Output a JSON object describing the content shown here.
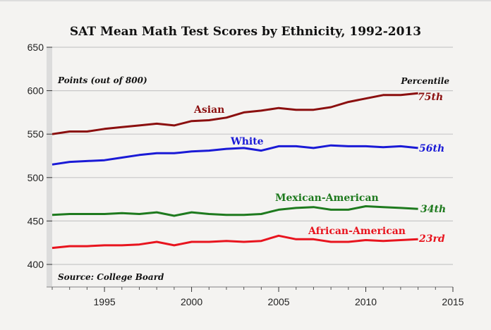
{
  "chart_data": {
    "type": "line",
    "title": "SAT Mean Math Test Scores by Ethnicity, 1992-2013",
    "ylabel": "Points (out of 800)",
    "source": "Source: College Board",
    "percentile_header": "Percentile",
    "xlim": [
      1992,
      2015
    ],
    "ylim": [
      400,
      650
    ],
    "xticks": [
      1995,
      2000,
      2005,
      2010,
      2015
    ],
    "yticks": [
      400,
      450,
      500,
      550,
      600,
      650
    ],
    "grid": true,
    "x": [
      1992,
      1993,
      1994,
      1995,
      1996,
      1997,
      1998,
      1999,
      2000,
      2001,
      2002,
      2003,
      2004,
      2005,
      2006,
      2007,
      2008,
      2009,
      2010,
      2011,
      2012,
      2013
    ],
    "series": [
      {
        "name": "Asian",
        "percentile": "75th",
        "color": "#8b0f0f",
        "values": [
          550,
          553,
          553,
          556,
          558,
          560,
          562,
          560,
          565,
          566,
          569,
          575,
          577,
          580,
          578,
          578,
          581,
          587,
          591,
          595,
          595,
          597
        ]
      },
      {
        "name": "White",
        "percentile": "56th",
        "color": "#1a1ad6",
        "values": [
          515,
          518,
          519,
          520,
          523,
          526,
          528,
          528,
          530,
          531,
          533,
          534,
          531,
          536,
          536,
          534,
          537,
          536,
          536,
          535,
          536,
          534
        ]
      },
      {
        "name": "Mexican-American",
        "percentile": "34th",
        "color": "#1e7a1e",
        "values": [
          457,
          458,
          458,
          458,
          459,
          458,
          460,
          456,
          460,
          458,
          457,
          457,
          458,
          463,
          465,
          466,
          463,
          463,
          467,
          466,
          465,
          464
        ]
      },
      {
        "name": "African-American",
        "percentile": "23rd",
        "color": "#e8141e",
        "values": [
          419,
          421,
          421,
          422,
          422,
          423,
          426,
          422,
          426,
          426,
          427,
          426,
          427,
          433,
          429,
          429,
          426,
          426,
          428,
          427,
          428,
          429
        ]
      }
    ]
  }
}
